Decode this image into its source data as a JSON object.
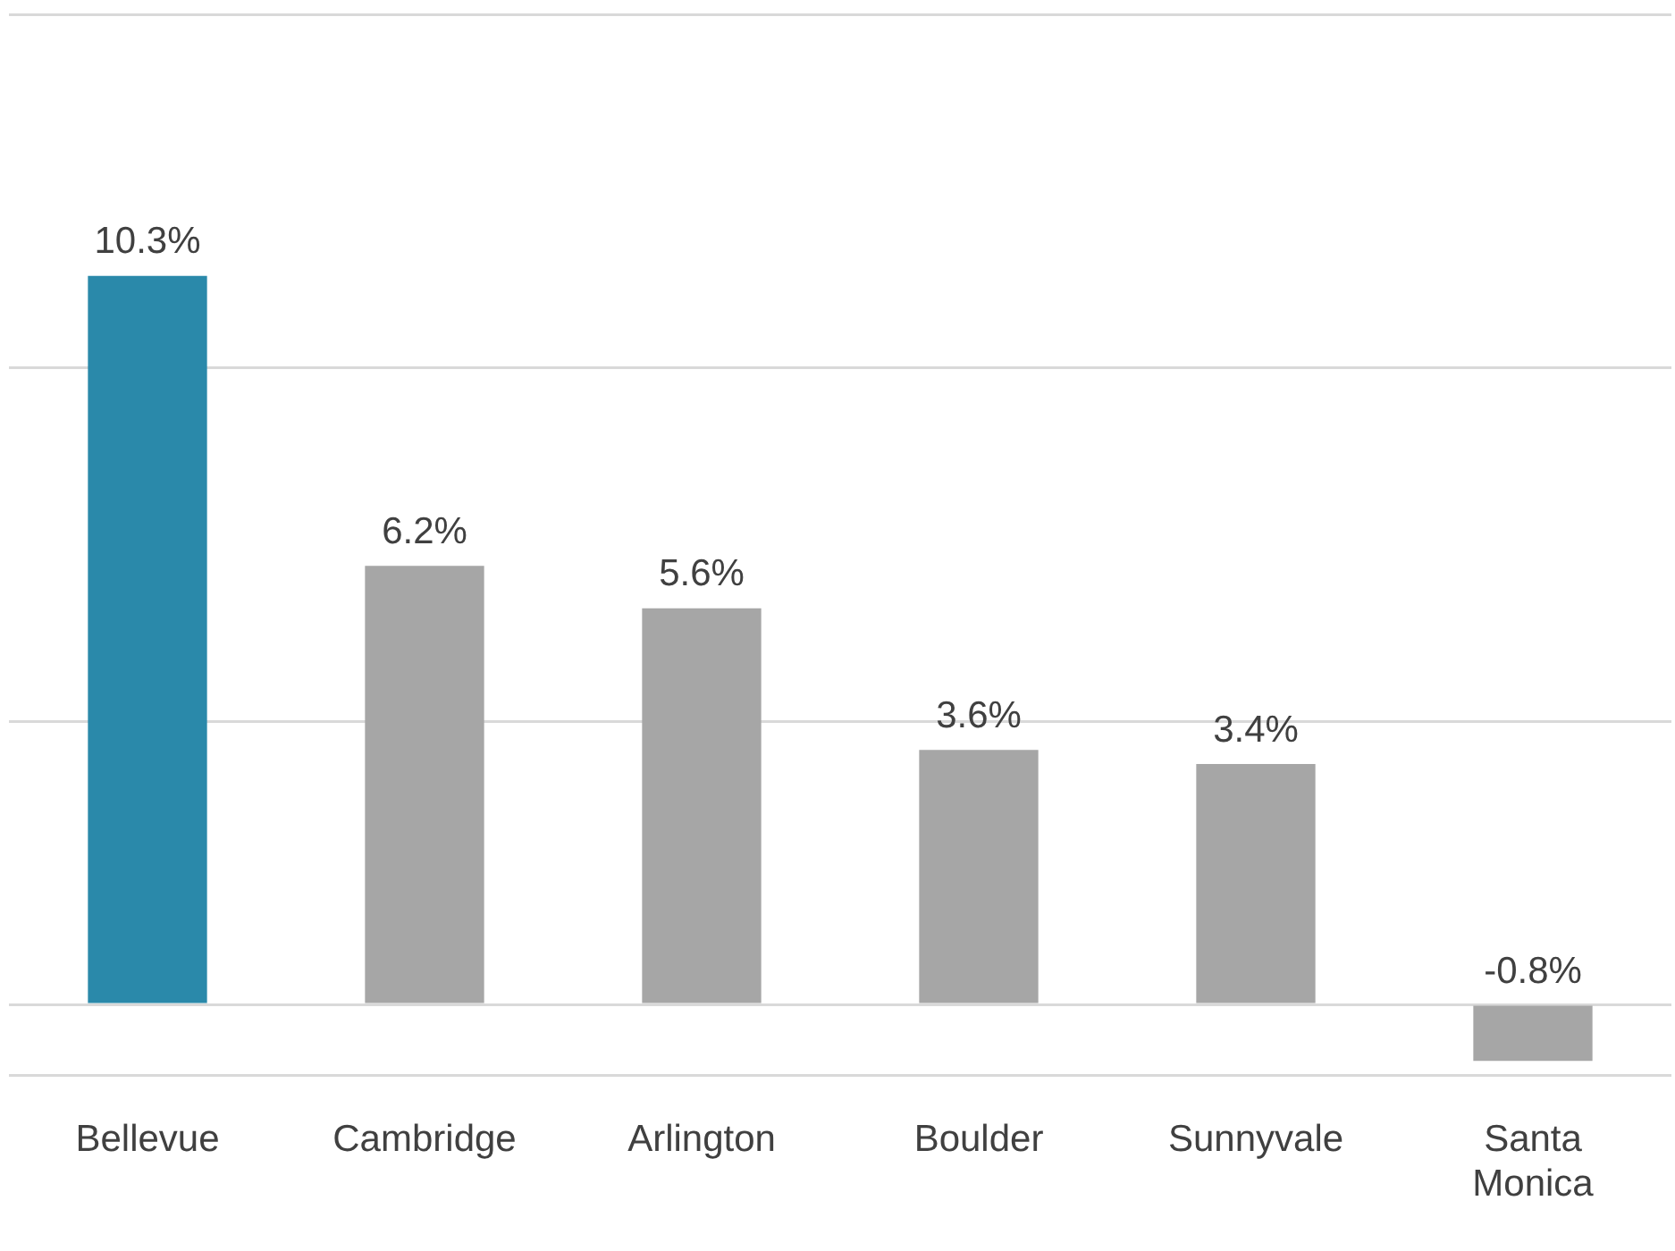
{
  "chart_data": {
    "type": "bar",
    "categories": [
      "Bellevue",
      "Cambridge",
      "Arlington",
      "Boulder",
      "Sunnyvale",
      "Santa Monica"
    ],
    "values": [
      10.3,
      6.2,
      5.6,
      3.6,
      3.4,
      -0.8
    ],
    "colors": [
      "#2a89aa",
      "#a6a6a6",
      "#a6a6a6",
      "#a6a6a6",
      "#a6a6a6",
      "#a6a6a6"
    ],
    "value_labels": [
      "10.3%",
      "6.2%",
      "5.6%",
      "3.6%",
      "3.4%",
      "-0.8%"
    ],
    "ylim": [
      -1,
      14
    ],
    "yticks": [
      {
        "value": -1,
        "label": null
      },
      {
        "value": 0,
        "label": null
      },
      {
        "value": 4,
        "label": null
      },
      {
        "value": 9,
        "label": null
      },
      {
        "value": 14,
        "label": null
      }
    ],
    "grid": "y",
    "legend": false,
    "tick_labels": "x"
  }
}
